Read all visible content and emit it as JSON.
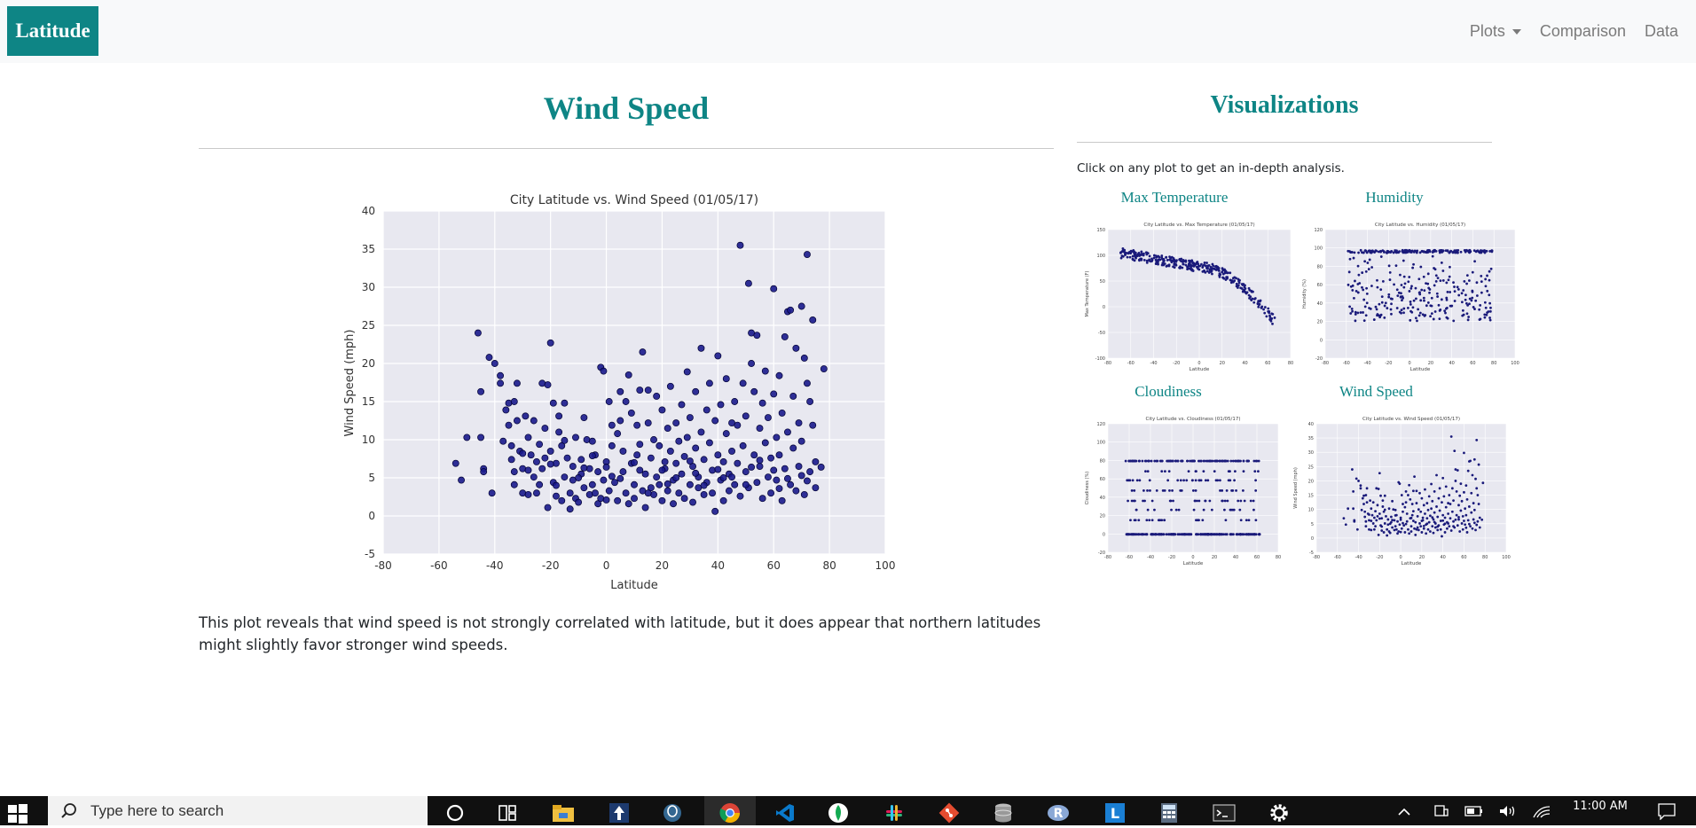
{
  "navbar": {
    "brand": "Latitude",
    "items": [
      {
        "label": "Plots",
        "dropdown": true
      },
      {
        "label": "Comparison",
        "dropdown": false
      },
      {
        "label": "Data",
        "dropdown": false
      }
    ]
  },
  "main": {
    "title": "Wind Speed",
    "description": "This plot reveals that wind speed is not strongly correlated with latitude, but it does appear that northern latitudes might slightly favor stronger wind speeds."
  },
  "sidebar": {
    "title": "Visualizations",
    "intro": "Click on any plot to get an in-depth analysis.",
    "thumbnails": [
      {
        "label": "Max Temperature",
        "plot_title": "City Latitude vs. Max Temperature (01/05/17)",
        "ylabel": "Max Temperature (F)",
        "xlabel": "Latitude",
        "yticks": [
          "150",
          "100",
          "50",
          "0",
          "-50",
          "-100"
        ],
        "xticks": [
          "-80",
          "-60",
          "-40",
          "-20",
          "0",
          "20",
          "40",
          "60",
          "80"
        ]
      },
      {
        "label": "Humidity",
        "plot_title": "City Latitude vs. Humidity (01/05/17)",
        "ylabel": "Humidity (%)",
        "xlabel": "Latitude",
        "yticks": [
          "120",
          "100",
          "80",
          "60",
          "40",
          "20",
          "0",
          "-20"
        ],
        "xticks": [
          "-80",
          "-60",
          "-40",
          "-20",
          "0",
          "20",
          "40",
          "60",
          "80",
          "100"
        ]
      },
      {
        "label": "Cloudiness",
        "plot_title": "City Latitude vs. Cloudiness (01/05/17)",
        "ylabel": "Cloudiness (%)",
        "xlabel": "Latitude",
        "yticks": [
          "120",
          "100",
          "80",
          "60",
          "40",
          "20",
          "0",
          "-20"
        ],
        "xticks": [
          "-80",
          "-60",
          "-40",
          "-20",
          "0",
          "20",
          "40",
          "60",
          "80"
        ]
      },
      {
        "label": "Wind Speed",
        "plot_title": "City Latitude vs. Wind Speed (01/05/17)",
        "ylabel": "Wind Speed (mph)",
        "xlabel": "Latitude",
        "yticks": [
          "40",
          "35",
          "30",
          "25",
          "20",
          "15",
          "10",
          "5",
          "0",
          "-5"
        ],
        "xticks": [
          "-80",
          "-60",
          "-40",
          "-20",
          "0",
          "20",
          "40",
          "60",
          "80",
          "100"
        ]
      }
    ]
  },
  "taskbar": {
    "search_placeholder": "Type here to search",
    "time": "11:00 AM",
    "apps": [
      "cortana-icon",
      "task-view-icon",
      "file-explorer-icon",
      "sourcetree-icon",
      "pgadmin-icon",
      "chrome-icon",
      "vscode-icon",
      "mongodb-icon",
      "slack-icon",
      "git-icon",
      "database-icon",
      "r-icon",
      "l-app-icon",
      "calculator-icon",
      "terminal-icon",
      "settings-icon"
    ]
  },
  "colors": {
    "accent": "#0e8585",
    "marker": "#1a1a8c",
    "plot_bg": "#e8e8f0",
    "navbar_bg": "#f8f9fa"
  },
  "chart_data": {
    "type": "scatter",
    "title": "City Latitude vs. Wind Speed (01/05/17)",
    "xlabel": "Latitude",
    "ylabel": "Wind Speed (mph)",
    "xlim": [
      -80,
      100
    ],
    "ylim": [
      -5,
      40
    ],
    "xticks": [
      -80,
      -60,
      -40,
      -20,
      0,
      20,
      40,
      60,
      80,
      100
    ],
    "yticks": [
      -5,
      0,
      5,
      10,
      15,
      20,
      25,
      30,
      35,
      40
    ],
    "grid": true,
    "points": [
      [
        -54,
        6.9
      ],
      [
        -52,
        4.7
      ],
      [
        -50,
        10.3
      ],
      [
        -46,
        24.0
      ],
      [
        -45,
        16.3
      ],
      [
        -45,
        10.3
      ],
      [
        -44,
        6.2
      ],
      [
        -44,
        5.8
      ],
      [
        -42,
        20.8
      ],
      [
        -41,
        3.0
      ],
      [
        -40,
        20.0
      ],
      [
        -38,
        18.4
      ],
      [
        -38,
        17.4
      ],
      [
        -37,
        9.8
      ],
      [
        -36,
        13.9
      ],
      [
        -35,
        14.8
      ],
      [
        -35,
        11.9
      ],
      [
        -34,
        9.2
      ],
      [
        -34,
        7.4
      ],
      [
        -33,
        5.8
      ],
      [
        -33,
        4.1
      ],
      [
        -33,
        15.0
      ],
      [
        -32,
        17.4
      ],
      [
        -32,
        12.5
      ],
      [
        -31,
        8.5
      ],
      [
        -30,
        3.0
      ],
      [
        -30,
        6.2
      ],
      [
        -29,
        13.1
      ],
      [
        -28,
        10.3
      ],
      [
        -28,
        2.8
      ],
      [
        -27,
        8.0
      ],
      [
        -26,
        5.1
      ],
      [
        -26,
        12.5
      ],
      [
        -25,
        7.1
      ],
      [
        -24,
        9.4
      ],
      [
        -24,
        4.1
      ],
      [
        -23,
        17.4
      ],
      [
        -23,
        6.2
      ],
      [
        -22,
        7.6
      ],
      [
        -22,
        11.5
      ],
      [
        -21,
        17.2
      ],
      [
        -21,
        1.1
      ],
      [
        -20,
        22.7
      ],
      [
        -20,
        8.5
      ],
      [
        -19,
        14.8
      ],
      [
        -19,
        4.4
      ],
      [
        -18,
        6.9
      ],
      [
        -18,
        2.6
      ],
      [
        -17,
        11.0
      ],
      [
        -17,
        13.1
      ],
      [
        -16,
        2.0
      ],
      [
        -16,
        9.2
      ],
      [
        -15,
        5.1
      ],
      [
        -15,
        14.8
      ],
      [
        -14,
        7.6
      ],
      [
        -13,
        3.0
      ],
      [
        -13,
        0.9
      ],
      [
        -12,
        4.7
      ],
      [
        -12,
        6.5
      ],
      [
        -11,
        10.3
      ],
      [
        -11,
        2.3
      ],
      [
        -10,
        1.8
      ],
      [
        -9,
        5.5
      ],
      [
        -9,
        7.4
      ],
      [
        -8,
        3.7
      ],
      [
        -8,
        12.9
      ],
      [
        -7,
        10.0
      ],
      [
        -6,
        6.2
      ],
      [
        -6,
        2.8
      ],
      [
        -5,
        4.1
      ],
      [
        -5,
        9.8
      ],
      [
        -4,
        3.0
      ],
      [
        -4,
        8.0
      ],
      [
        -3,
        5.8
      ],
      [
        -3,
        1.6
      ],
      [
        -2,
        2.3
      ],
      [
        -2,
        19.5
      ],
      [
        -1,
        19.0
      ],
      [
        -1,
        4.7
      ],
      [
        0,
        7.1
      ],
      [
        0,
        6.4
      ],
      [
        1,
        3.3
      ],
      [
        1,
        15.0
      ],
      [
        2,
        11.9
      ],
      [
        2,
        9.2
      ],
      [
        3,
        4.4
      ],
      [
        4,
        2.0
      ],
      [
        4,
        10.8
      ],
      [
        5,
        12.5
      ],
      [
        5,
        16.3
      ],
      [
        6,
        5.8
      ],
      [
        6,
        8.5
      ],
      [
        7,
        3.0
      ],
      [
        7,
        15.0
      ],
      [
        8,
        18.5
      ],
      [
        8,
        1.6
      ],
      [
        9,
        6.9
      ],
      [
        9,
        13.5
      ],
      [
        10,
        4.1
      ],
      [
        10,
        2.3
      ],
      [
        11,
        11.9
      ],
      [
        11,
        8.0
      ],
      [
        12,
        16.5
      ],
      [
        12,
        9.4
      ],
      [
        13,
        3.3
      ],
      [
        13,
        21.5
      ],
      [
        14,
        5.5
      ],
      [
        14,
        1.1
      ],
      [
        15,
        16.5
      ],
      [
        15,
        12.2
      ],
      [
        16,
        7.6
      ],
      [
        16,
        3.7
      ],
      [
        17,
        10.0
      ],
      [
        17,
        2.8
      ],
      [
        18,
        5.1
      ],
      [
        18,
        15.7
      ],
      [
        19,
        9.2
      ],
      [
        19,
        4.1
      ],
      [
        20,
        2.0
      ],
      [
        20,
        13.9
      ],
      [
        21,
        7.1
      ],
      [
        21,
        6.2
      ],
      [
        22,
        11.5
      ],
      [
        22,
        3.3
      ],
      [
        23,
        17.0
      ],
      [
        23,
        8.5
      ],
      [
        24,
        4.7
      ],
      [
        24,
        1.6
      ],
      [
        25,
        12.2
      ],
      [
        25,
        6.9
      ],
      [
        26,
        3.0
      ],
      [
        26,
        9.8
      ],
      [
        27,
        14.6
      ],
      [
        27,
        5.5
      ],
      [
        28,
        7.8
      ],
      [
        28,
        2.3
      ],
      [
        29,
        18.9
      ],
      [
        29,
        10.3
      ],
      [
        30,
        4.1
      ],
      [
        30,
        12.9
      ],
      [
        31,
        6.5
      ],
      [
        31,
        1.8
      ],
      [
        32,
        8.9
      ],
      [
        32,
        16.3
      ],
      [
        33,
        3.7
      ],
      [
        33,
        5.1
      ],
      [
        34,
        22.0
      ],
      [
        34,
        11.0
      ],
      [
        35,
        7.4
      ],
      [
        35,
        2.8
      ],
      [
        36,
        13.9
      ],
      [
        36,
        4.4
      ],
      [
        37,
        9.6
      ],
      [
        37,
        17.4
      ],
      [
        38,
        6.0
      ],
      [
        38,
        3.0
      ],
      [
        39,
        12.5
      ],
      [
        39,
        0.6
      ],
      [
        40,
        8.0
      ],
      [
        40,
        21.0
      ],
      [
        41,
        4.7
      ],
      [
        41,
        14.6
      ],
      [
        42,
        7.1
      ],
      [
        42,
        2.0
      ],
      [
        43,
        10.8
      ],
      [
        43,
        18.0
      ],
      [
        44,
        5.5
      ],
      [
        44,
        3.3
      ],
      [
        45,
        12.2
      ],
      [
        45,
        8.5
      ],
      [
        46,
        15.0
      ],
      [
        46,
        4.1
      ],
      [
        47,
        6.9
      ],
      [
        47,
        11.9
      ],
      [
        48,
        35.5
      ],
      [
        48,
        2.6
      ],
      [
        49,
        9.2
      ],
      [
        49,
        17.4
      ],
      [
        50,
        5.8
      ],
      [
        50,
        13.1
      ],
      [
        51,
        30.5
      ],
      [
        51,
        3.7
      ],
      [
        52,
        24.0
      ],
      [
        52,
        20.0
      ],
      [
        53,
        8.0
      ],
      [
        53,
        16.3
      ],
      [
        54,
        23.7
      ],
      [
        54,
        4.4
      ],
      [
        55,
        11.5
      ],
      [
        55,
        6.5
      ],
      [
        56,
        14.8
      ],
      [
        56,
        2.3
      ],
      [
        57,
        9.6
      ],
      [
        57,
        19.0
      ],
      [
        58,
        5.1
      ],
      [
        58,
        12.9
      ],
      [
        59,
        7.6
      ],
      [
        59,
        3.0
      ],
      [
        60,
        29.8
      ],
      [
        60,
        16.0
      ],
      [
        61,
        10.3
      ],
      [
        61,
        4.7
      ],
      [
        62,
        18.4
      ],
      [
        62,
        8.0
      ],
      [
        63,
        13.5
      ],
      [
        63,
        2.0
      ],
      [
        64,
        6.2
      ],
      [
        64,
        23.5
      ],
      [
        65,
        26.8
      ],
      [
        65,
        11.0
      ],
      [
        66,
        27.0
      ],
      [
        66,
        4.1
      ],
      [
        67,
        15.7
      ],
      [
        67,
        8.9
      ],
      [
        68,
        3.3
      ],
      [
        68,
        22.0
      ],
      [
        69,
        12.2
      ],
      [
        69,
        6.5
      ],
      [
        70,
        27.5
      ],
      [
        70,
        9.8
      ],
      [
        71,
        20.7
      ],
      [
        71,
        2.8
      ],
      [
        72,
        34.3
      ],
      [
        72,
        17.4
      ],
      [
        73,
        15.0
      ],
      [
        73,
        5.8
      ],
      [
        74,
        25.7
      ],
      [
        74,
        11.9
      ],
      [
        75,
        7.1
      ],
      [
        75,
        3.7
      ],
      [
        77,
        6.4
      ],
      [
        78,
        19.3
      ],
      [
        -30,
        8.2
      ],
      [
        -25,
        3.0
      ],
      [
        -20,
        6.8
      ],
      [
        -15,
        9.9
      ],
      [
        -10,
        5.0
      ],
      [
        -5,
        7.9
      ],
      [
        0,
        2.1
      ],
      [
        5,
        4.9
      ],
      [
        10,
        7.0
      ],
      [
        15,
        3.0
      ],
      [
        20,
        6.0
      ],
      [
        25,
        5.0
      ],
      [
        30,
        7.2
      ],
      [
        35,
        4.0
      ],
      [
        40,
        6.1
      ],
      [
        45,
        5.1
      ],
      [
        50,
        4.1
      ],
      [
        55,
        7.3
      ],
      [
        60,
        6.0
      ],
      [
        65,
        4.9
      ],
      [
        70,
        5.3
      ],
      [
        -28,
        6.0
      ],
      [
        -18,
        4.0
      ],
      [
        -8,
        6.3
      ],
      [
        2,
        5.2
      ],
      [
        12,
        6.0
      ],
      [
        22,
        4.2
      ],
      [
        32,
        5.6
      ],
      [
        42,
        5.0
      ],
      [
        52,
        6.4
      ],
      [
        62,
        3.6
      ],
      [
        72,
        4.6
      ]
    ]
  }
}
